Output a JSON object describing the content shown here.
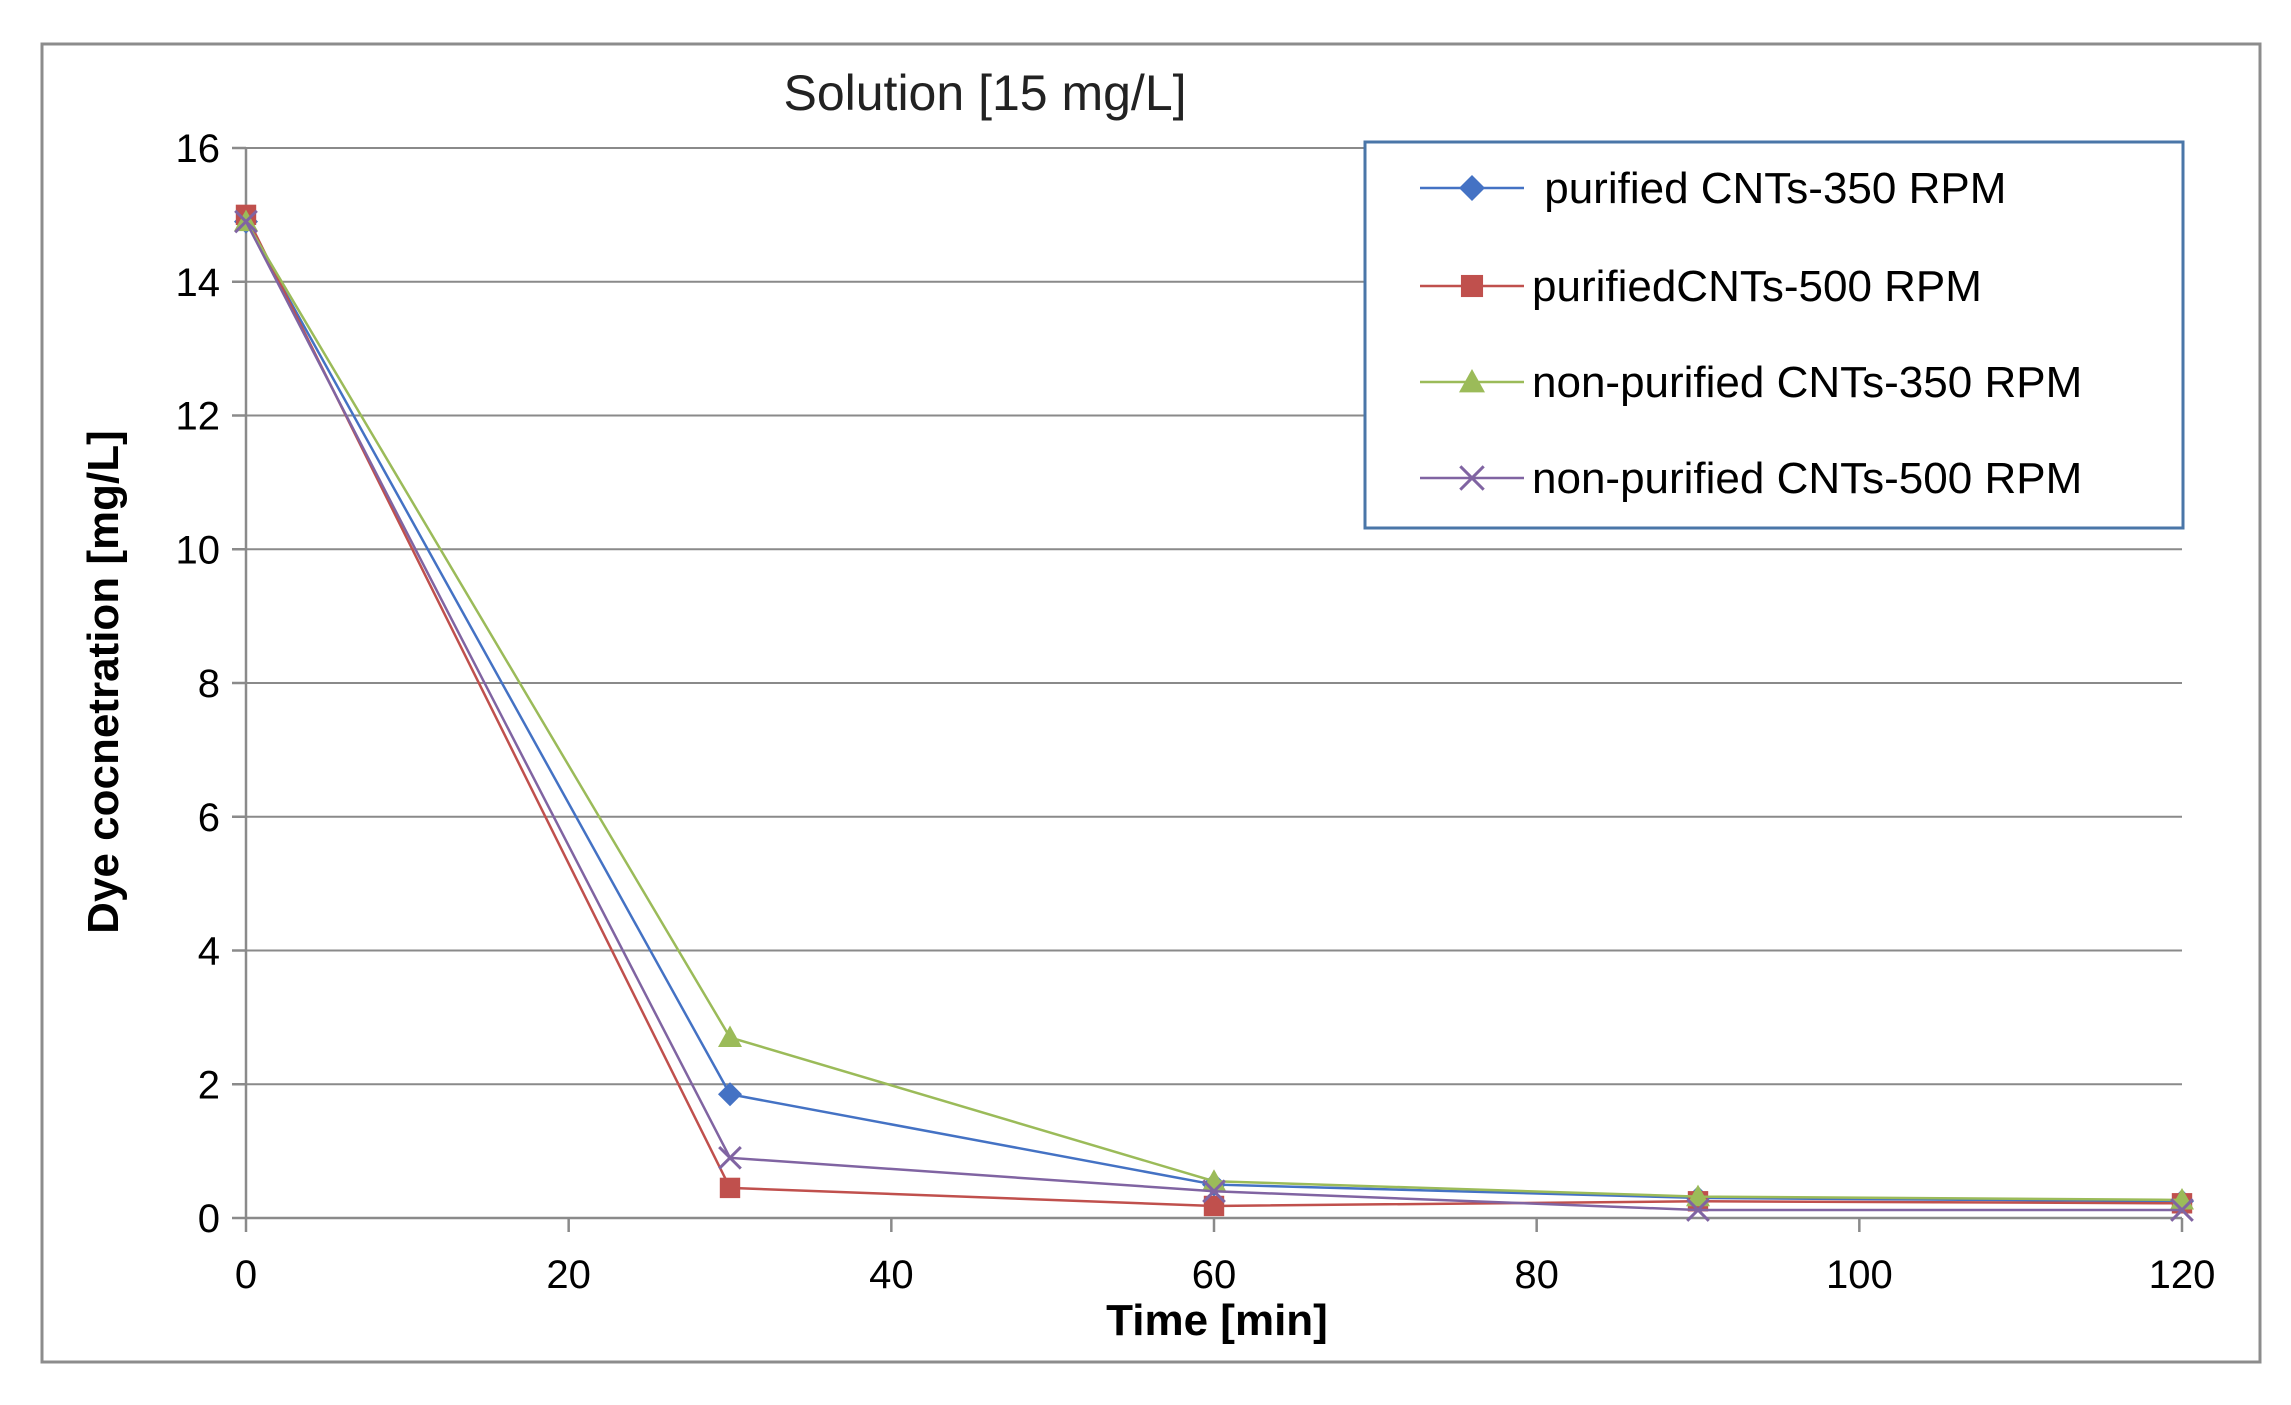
{
  "chart_data": {
    "type": "line",
    "title": "Solution [15 mg/L]",
    "xlabel": "Time [min]",
    "ylabel": "Dye cocnetration [mg/L]",
    "xlim": [
      0,
      120
    ],
    "ylim": [
      0,
      16
    ],
    "xticks": [
      0,
      20,
      40,
      60,
      80,
      100,
      120
    ],
    "yticks": [
      0,
      2,
      4,
      6,
      8,
      10,
      12,
      14,
      16
    ],
    "grid": "horizontal",
    "legend_position": "top-right",
    "x": [
      0,
      30,
      60,
      90,
      120
    ],
    "series": [
      {
        "name": " purified CNTs-350 RPM",
        "marker": "diamond",
        "color": "#4472C4",
        "values": [
          14.9,
          1.85,
          0.5,
          0.3,
          0.25
        ]
      },
      {
        "name": "purifiedCNTs-500 RPM",
        "marker": "square",
        "color": "#C0504D",
        "values": [
          15.0,
          0.45,
          0.18,
          0.25,
          0.22
        ]
      },
      {
        "name": "non-purified CNTs-350 RPM",
        "marker": "triangle",
        "color": "#9BBB59",
        "values": [
          14.9,
          2.7,
          0.55,
          0.32,
          0.27
        ]
      },
      {
        "name": "non-purified CNTs-500 RPM",
        "marker": "x",
        "color": "#8064A2",
        "values": [
          14.9,
          0.9,
          0.4,
          0.12,
          0.12
        ]
      }
    ]
  }
}
